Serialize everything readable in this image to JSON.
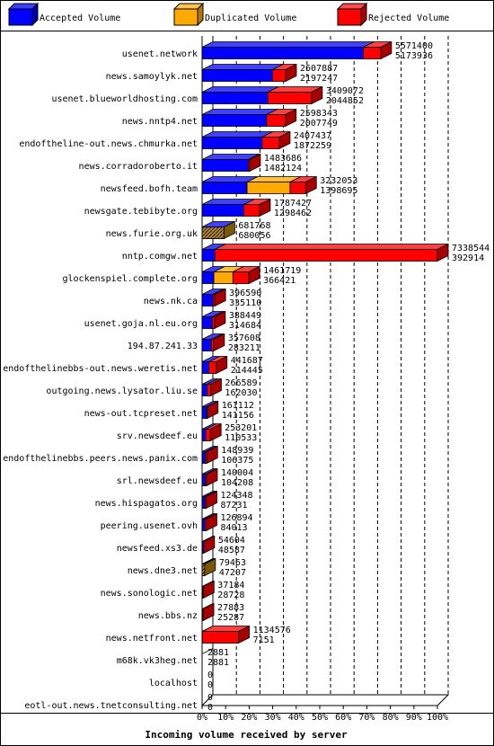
{
  "legend": [
    {
      "label": "Accepted Volume",
      "color": "#0000ff"
    },
    {
      "label": "Duplicated Volume",
      "color": "#ffaa00"
    },
    {
      "label": "Rejected Volume",
      "color": "#ff0000"
    }
  ],
  "colors": {
    "accepted": "#0000ff",
    "duplicated": "#ffaa00",
    "rejected": "#ff0000",
    "mixed": "#b8860b",
    "border": "#000000"
  },
  "chart_data": {
    "type": "bar",
    "orientation": "horizontal",
    "stacked": true,
    "xlabel": "Incoming volume received by server",
    "xlim": [
      0,
      100
    ],
    "x_tick_labels": [
      "0%",
      "10%",
      "20%",
      "30%",
      "40%",
      "50%",
      "60%",
      "70%",
      "80%",
      "90%",
      "100%"
    ],
    "grid": "vertical dashed",
    "legend_position": "top",
    "rows": [
      {
        "name": "usenet.network",
        "top": "5571400",
        "bottom": "5173936",
        "total": 75.9,
        "acc": 68.5,
        "dup": 0,
        "rej": 7.4,
        "hatch": false
      },
      {
        "name": "news.samoylyk.net",
        "top": "2607887",
        "bottom": "2197247",
        "total": 35.5,
        "acc": 29.9,
        "dup": 0,
        "rej": 5.6,
        "hatch": false
      },
      {
        "name": "usenet.blueworldhosting.com",
        "top": "3409072",
        "bottom": "2044852",
        "total": 46.5,
        "acc": 27.9,
        "dup": 0,
        "rej": 18.6,
        "hatch": false
      },
      {
        "name": "news.nntp4.net",
        "top": "2598343",
        "bottom": "2007749",
        "total": 35.4,
        "acc": 27.4,
        "dup": 0,
        "rej": 8.0,
        "hatch": false
      },
      {
        "name": "endoftheline-out.news.chmurka.net",
        "top": "2407437",
        "bottom": "1872259",
        "total": 32.8,
        "acc": 25.5,
        "dup": 0,
        "rej": 7.3,
        "hatch": false
      },
      {
        "name": "news.corradoroberto.it",
        "top": "1483686",
        "bottom": "1482124",
        "total": 20.2,
        "acc": 19.7,
        "dup": 0,
        "rej": 0.5,
        "hatch": false
      },
      {
        "name": "newsfeed.bofh.team",
        "top": "3232053",
        "bottom": "1398695",
        "total": 44.0,
        "acc": 19.1,
        "dup": 18.3,
        "rej": 6.6,
        "hatch": false
      },
      {
        "name": "newsgate.tebibyte.org",
        "top": "1787427",
        "bottom": "1298462",
        "total": 24.4,
        "acc": 17.7,
        "dup": 0,
        "rej": 6.7,
        "hatch": false
      },
      {
        "name": "news.furie.org.uk",
        "top": "681768",
        "bottom": "680056",
        "total": 9.3,
        "acc": 9.3,
        "dup": 0,
        "rej": 0,
        "hatch": true
      },
      {
        "name": "nntp.comgw.net",
        "top": "7338544",
        "bottom": "392914",
        "total": 100,
        "acc": 5.4,
        "dup": 0,
        "rej": 94.6,
        "hatch": false
      },
      {
        "name": "glockenspiel.complete.org",
        "top": "1461719",
        "bottom": "366421",
        "total": 19.9,
        "acc": 5.0,
        "dup": 8.1,
        "rej": 6.8,
        "hatch": false
      },
      {
        "name": "news.nk.ca",
        "top": "396590",
        "bottom": "335110",
        "total": 5.4,
        "acc": 4.6,
        "dup": 0,
        "rej": 0.8,
        "hatch": false
      },
      {
        "name": "usenet.goja.nl.eu.org",
        "top": "388449",
        "bottom": "314684",
        "total": 5.3,
        "acc": 4.3,
        "dup": 0,
        "rej": 1.0,
        "hatch": false
      },
      {
        "name": "194.87.241.33",
        "top": "357608",
        "bottom": "283211",
        "total": 4.9,
        "acc": 3.9,
        "dup": 0,
        "rej": 1.0,
        "hatch": false
      },
      {
        "name": "endofthelinebbs-out.news.weretis.net",
        "top": "441687",
        "bottom": "214445",
        "total": 6.0,
        "acc": 2.9,
        "dup": 0,
        "rej": 3.1,
        "hatch": false
      },
      {
        "name": "outgoing.news.lysator.liu.se",
        "top": "266589",
        "bottom": "162030",
        "total": 3.6,
        "acc": 2.2,
        "dup": 0,
        "rej": 1.4,
        "hatch": false
      },
      {
        "name": "news-out.tcpreset.net",
        "top": "161112",
        "bottom": "141156",
        "total": 2.2,
        "acc": 1.9,
        "dup": 0,
        "rej": 0.3,
        "hatch": false
      },
      {
        "name": "srv.newsdeef.eu",
        "top": "253201",
        "bottom": "110533",
        "total": 3.5,
        "acc": 1.5,
        "dup": 0,
        "rej": 2.0,
        "hatch": false
      },
      {
        "name": "endofthelinebbs.peers.news.panix.com",
        "top": "148939",
        "bottom": "106375",
        "total": 2.0,
        "acc": 1.4,
        "dup": 0,
        "rej": 0.6,
        "hatch": false
      },
      {
        "name": "srl.newsdeef.eu",
        "top": "140004",
        "bottom": "104208",
        "total": 1.9,
        "acc": 1.4,
        "dup": 0,
        "rej": 0.5,
        "hatch": false
      },
      {
        "name": "news.hispagatos.org",
        "top": "124348",
        "bottom": "87231",
        "total": 1.7,
        "acc": 1.2,
        "dup": 0,
        "rej": 0.5,
        "hatch": false
      },
      {
        "name": "peering.usenet.ovh",
        "top": "126894",
        "bottom": "84013",
        "total": 1.7,
        "acc": 1.1,
        "dup": 0,
        "rej": 0.6,
        "hatch": false
      },
      {
        "name": "newsfeed.xs3.de",
        "top": "54604",
        "bottom": "48587",
        "total": 0.7,
        "acc": 0.7,
        "dup": 0,
        "rej": 0.1,
        "hatch": false
      },
      {
        "name": "news.dne3.net",
        "top": "79463",
        "bottom": "47207",
        "total": 1.1,
        "acc": 0.6,
        "dup": 0.5,
        "rej": 0,
        "hatch": true
      },
      {
        "name": "news.sonologic.net",
        "top": "37184",
        "bottom": "28728",
        "total": 0.5,
        "acc": 0.4,
        "dup": 0,
        "rej": 0.1,
        "hatch": false
      },
      {
        "name": "news.bbs.nz",
        "top": "27883",
        "bottom": "25287",
        "total": 0.4,
        "acc": 0.3,
        "dup": 0,
        "rej": 0.1,
        "hatch": false
      },
      {
        "name": "news.netfront.net",
        "top": "1134576",
        "bottom": "7151",
        "total": 15.5,
        "acc": 0.1,
        "dup": 0,
        "rej": 15.4,
        "hatch": false
      },
      {
        "name": "m68k.vk3heg.net",
        "top": "2881",
        "bottom": "2881",
        "total": 0.04,
        "acc": 0.04,
        "dup": 0,
        "rej": 0,
        "hatch": false
      },
      {
        "name": "localhost",
        "top": "0",
        "bottom": "0",
        "total": 0,
        "acc": 0,
        "dup": 0,
        "rej": 0,
        "hatch": false
      },
      {
        "name": "eotl-out.news.tnetconsulting.net",
        "top": "0",
        "bottom": "0",
        "total": 0,
        "acc": 0,
        "dup": 0,
        "rej": 0,
        "hatch": false
      }
    ]
  }
}
